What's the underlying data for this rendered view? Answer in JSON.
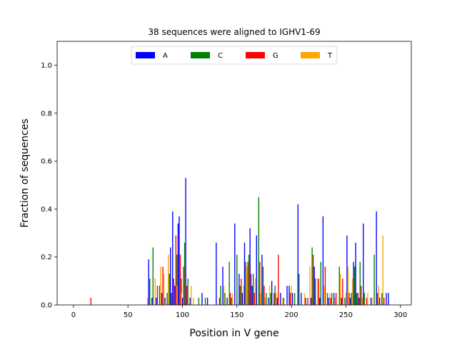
{
  "chart_data": {
    "type": "bar",
    "title": "38 sequences were aligned to IGHV1-69",
    "xlabel": "Position in V gene",
    "ylabel": "Fraction of sequences",
    "xlim": [
      -15,
      310
    ],
    "ylim": [
      0,
      1.1
    ],
    "xticks": [
      0,
      50,
      100,
      150,
      200,
      250,
      300
    ],
    "yticks": [
      0.0,
      0.2,
      0.4,
      0.6,
      0.8,
      1.0
    ],
    "xtick_labels": [
      "0",
      "50",
      "100",
      "150",
      "200",
      "250",
      "300"
    ],
    "ytick_labels": [
      "0.0",
      "0.2",
      "0.4",
      "0.6",
      "0.8",
      "1.0"
    ],
    "legend_position": "top-center",
    "grid": false,
    "series": [
      {
        "name": "A",
        "color": "#0000ff",
        "x": [
          69,
          72,
          76,
          81,
          84,
          89,
          91,
          93,
          96,
          97,
          100,
          103,
          107,
          118,
          123,
          131,
          137,
          141,
          148,
          152,
          155,
          157,
          162,
          164,
          168,
          173,
          179,
          182,
          187,
          190,
          196,
          198,
          201,
          206,
          209,
          213,
          218,
          221,
          226,
          229,
          234,
          239,
          246,
          251,
          254,
          257,
          259,
          262,
          266,
          273,
          278,
          281,
          287,
          289
        ],
        "values": [
          0.19,
          0.03,
          0.03,
          0.05,
          0.03,
          0.24,
          0.39,
          0.08,
          0.34,
          0.37,
          0.03,
          0.53,
          0.03,
          0.05,
          0.03,
          0.26,
          0.16,
          0.03,
          0.34,
          0.13,
          0.05,
          0.26,
          0.32,
          0.08,
          0.29,
          0.21,
          0.03,
          0.1,
          0.03,
          0.05,
          0.08,
          0.08,
          0.05,
          0.42,
          0.05,
          0.03,
          0.03,
          0.16,
          0.03,
          0.37,
          0.03,
          0.05,
          0.03,
          0.29,
          0.03,
          0.18,
          0.26,
          0.03,
          0.34,
          0.03,
          0.39,
          0.03,
          0.05,
          0.05
        ]
      },
      {
        "name": "C",
        "color": "#008000",
        "x": [
          70,
          73,
          79,
          86,
          88,
          90,
          95,
          99,
          102,
          105,
          115,
          121,
          135,
          139,
          143,
          145,
          150,
          153,
          158,
          161,
          165,
          170,
          174,
          177,
          181,
          185,
          193,
          203,
          207,
          219,
          222,
          227,
          233,
          237,
          244,
          249,
          255,
          258,
          260,
          263,
          267,
          276,
          283
        ],
        "values": [
          0.11,
          0.24,
          0.08,
          0.05,
          0.13,
          0.05,
          0.21,
          0.11,
          0.26,
          0.11,
          0.03,
          0.03,
          0.08,
          0.05,
          0.18,
          0.03,
          0.21,
          0.08,
          0.18,
          0.21,
          0.13,
          0.45,
          0.16,
          0.05,
          0.05,
          0.08,
          0.03,
          0.05,
          0.13,
          0.24,
          0.11,
          0.18,
          0.05,
          0.05,
          0.16,
          0.03,
          0.05,
          0.16,
          0.05,
          0.18,
          0.05,
          0.21,
          0.05
        ]
      },
      {
        "name": "G",
        "color": "#ff0000",
        "x": [
          16,
          77,
          82,
          92,
          94,
          98,
          101,
          104,
          134,
          144,
          154,
          160,
          163,
          166,
          171,
          175,
          184,
          188,
          199,
          215,
          220,
          225,
          231,
          236,
          241,
          247,
          253,
          261,
          264,
          269,
          279,
          285
        ],
        "values": [
          0.03,
          0.08,
          0.16,
          0.11,
          0.29,
          0.21,
          0.16,
          0.08,
          0.03,
          0.05,
          0.11,
          0.18,
          0.13,
          0.05,
          0.18,
          0.08,
          0.05,
          0.21,
          0.05,
          0.03,
          0.21,
          0.11,
          0.16,
          0.03,
          0.05,
          0.11,
          0.05,
          0.05,
          0.08,
          0.03,
          0.05,
          0.03
        ]
      },
      {
        "name": "T",
        "color": "#ffa500",
        "x": [
          68,
          75,
          80,
          83,
          87,
          95,
          99,
          108,
          110,
          138,
          146,
          156,
          159,
          167,
          172,
          176,
          180,
          186,
          192,
          200,
          212,
          217,
          224,
          230,
          235,
          240,
          245,
          250,
          252,
          256,
          265,
          270,
          274,
          280,
          284
        ],
        "values": [
          0.03,
          0.11,
          0.16,
          0.13,
          0.21,
          0.08,
          0.05,
          0.08,
          0.03,
          0.08,
          0.05,
          0.08,
          0.16,
          0.11,
          0.05,
          0.03,
          0.08,
          0.05,
          0.03,
          0.08,
          0.05,
          0.16,
          0.11,
          0.08,
          0.05,
          0.03,
          0.13,
          0.05,
          0.16,
          0.11,
          0.03,
          0.05,
          0.03,
          0.08,
          0.29
        ]
      }
    ]
  }
}
